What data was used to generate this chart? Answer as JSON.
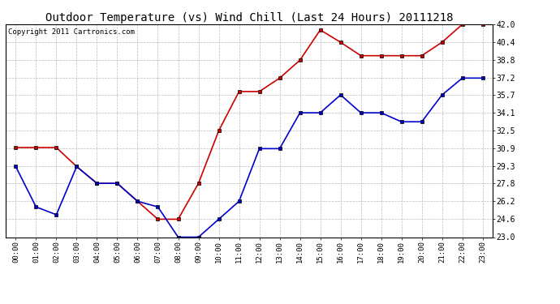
{
  "title": "Outdoor Temperature (vs) Wind Chill (Last 24 Hours) 20111218",
  "copyright": "Copyright 2011 Cartronics.com",
  "hours": [
    "00:00",
    "01:00",
    "02:00",
    "03:00",
    "04:00",
    "05:00",
    "06:00",
    "07:00",
    "08:00",
    "09:00",
    "10:00",
    "11:00",
    "12:00",
    "13:00",
    "14:00",
    "15:00",
    "16:00",
    "17:00",
    "18:00",
    "19:00",
    "20:00",
    "21:00",
    "22:00",
    "23:00"
  ],
  "temp": [
    31.0,
    31.0,
    31.0,
    29.3,
    27.8,
    27.8,
    26.2,
    24.6,
    24.6,
    27.8,
    32.5,
    36.0,
    36.0,
    37.2,
    38.8,
    41.5,
    40.4,
    39.2,
    39.2,
    39.2,
    39.2,
    40.4,
    42.0,
    42.0
  ],
  "wind_chill": [
    29.3,
    25.7,
    25.0,
    29.3,
    27.8,
    27.8,
    26.2,
    25.7,
    23.0,
    23.0,
    24.6,
    26.2,
    30.9,
    30.9,
    34.1,
    34.1,
    35.7,
    34.1,
    34.1,
    33.3,
    33.3,
    35.7,
    37.2,
    37.2
  ],
  "temp_color": "#cc0000",
  "wind_chill_color": "#0000cc",
  "background_color": "#ffffff",
  "grid_color": "#bbbbbb",
  "ylim": [
    23.0,
    42.0
  ],
  "yticks": [
    23.0,
    24.6,
    26.2,
    27.8,
    29.3,
    30.9,
    32.5,
    34.1,
    35.7,
    37.2,
    38.8,
    40.4,
    42.0
  ],
  "title_fontsize": 10,
  "copyright_fontsize": 6.5,
  "marker": "s",
  "marker_size": 2.5,
  "line_width": 1.2
}
